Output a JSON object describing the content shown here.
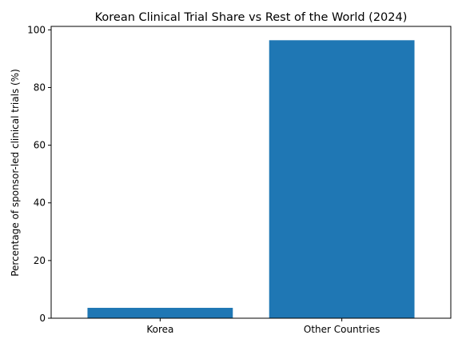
{
  "chart_data": {
    "type": "bar",
    "title": "Korean Clinical Trial Share vs Rest of the World (2024)",
    "xlabel": "",
    "ylabel": "Percentage of sponsor-led clinical trials (%)",
    "categories": [
      "Korea",
      "Other Countries"
    ],
    "values": [
      3.6,
      96.4
    ],
    "ylim": [
      0,
      101.2
    ],
    "yticks": [
      0,
      20,
      40,
      60,
      80,
      100
    ],
    "grid": false,
    "legend": "none",
    "bar_color": "#1f77b4"
  }
}
